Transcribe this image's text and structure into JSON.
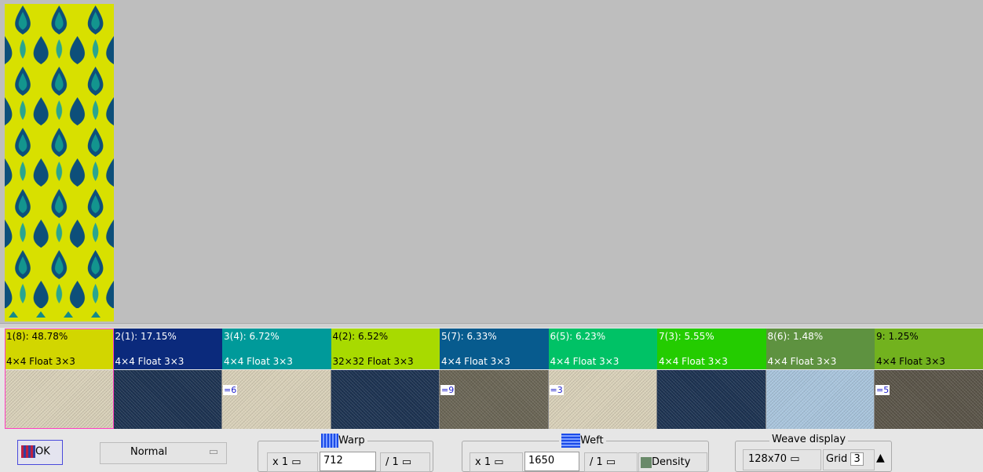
{
  "cells": [
    {
      "label": "1(8): 48.78%",
      "weave": "4×4 Float 3×3",
      "color": "#d2d600",
      "text": "#000000",
      "swatch": "#d9d1b9"
    },
    {
      "label": "2(1): 17.15%",
      "weave": "4×4 Float 3×3",
      "color": "#0b2a7c",
      "text": "#ffffff",
      "swatch": "#1d3352"
    },
    {
      "label": "3(4): 6.72%",
      "weave": "4×4 Float 3×3",
      "color": "#009a9a",
      "text": "#ffffff",
      "swatch": "#d9d1b9",
      "badge": "=6"
    },
    {
      "label": "4(2): 6.52%",
      "weave": "32×32 Float 3×3",
      "color": "#a8da00",
      "text": "#000000",
      "swatch": "#1d3352"
    },
    {
      "label": "5(7): 6.33%",
      "weave": "4×4 Float 3×3",
      "color": "#075b8e",
      "text": "#ffffff",
      "swatch": "#6b6656",
      "badge": "=9"
    },
    {
      "label": "6(5): 6.23%",
      "weave": "4×4 Float 3×3",
      "color": "#00c266",
      "text": "#ffffff",
      "swatch": "#d9d1b9",
      "badge": "=3"
    },
    {
      "label": "7(3): 5.55%",
      "weave": "4×4 Float 3×3",
      "color": "#24cc00",
      "text": "#ffffff",
      "swatch": "#1d3352"
    },
    {
      "label": "8(6): 1.48%",
      "weave": "4×4 Float 3×3",
      "color": "#5e9240",
      "text": "#ffffff",
      "swatch": "#a9c5dd"
    },
    {
      "label": "9: 1.25%",
      "weave": "4×4 Float 3×3",
      "color": "#72b21e",
      "text": "#000000",
      "swatch": "#5b5549",
      "badge": "=5"
    }
  ],
  "toolbar": {
    "ok": "OK",
    "mode": "Normal",
    "warp": {
      "title": "Warp",
      "multiplier": "x 1",
      "count": "712",
      "divisor": "/ 1"
    },
    "weft": {
      "title": "Weft",
      "multiplier": "x 1",
      "count": "1650",
      "divisor": "/ 1",
      "density": "Density"
    },
    "weave_display": {
      "title": "Weave display",
      "size": "128x70",
      "grid_label": "Grid",
      "grid": "3"
    }
  }
}
